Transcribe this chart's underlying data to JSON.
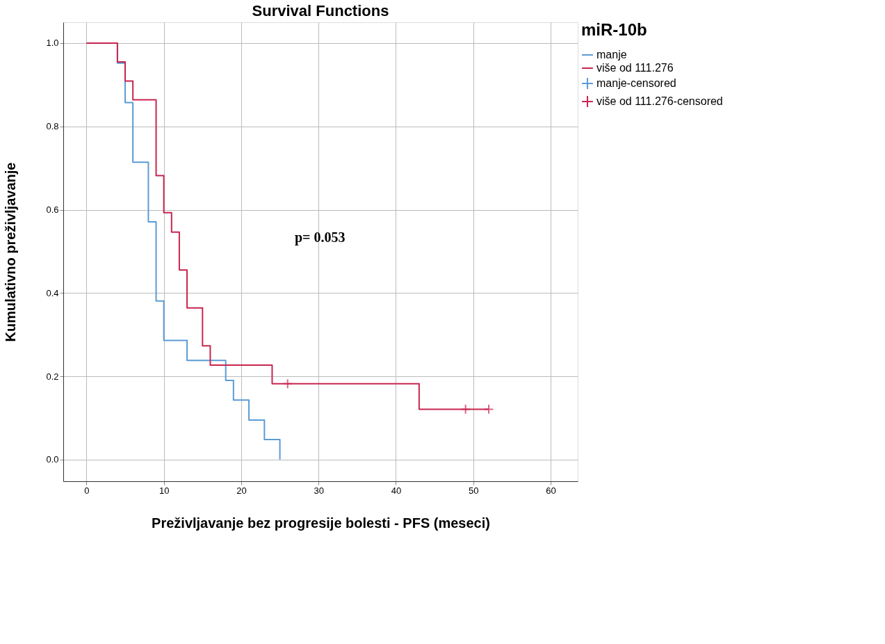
{
  "chart_data": {
    "type": "step",
    "title": "Survival Functions",
    "xlabel": "Preživljavanje bez progresije bolesti - PFS (meseci)",
    "ylabel": "Kumulativno preživljavanje",
    "legend_title": "miR-10b",
    "series": [
      {
        "name": "manje",
        "color": "#5b9bd5",
        "x": [
          0,
          4,
          5,
          6,
          8,
          9,
          10,
          13,
          18,
          19,
          21,
          23,
          25
        ],
        "values": [
          1.0,
          0.952,
          0.857,
          0.714,
          0.571,
          0.381,
          0.286,
          0.238,
          0.19,
          0.143,
          0.095,
          0.048,
          0.0
        ]
      },
      {
        "name": "više od 111.276",
        "color": "#c8254f",
        "x": [
          0,
          4,
          5,
          6,
          9,
          10,
          11,
          12,
          13,
          15,
          16,
          24,
          43,
          52
        ],
        "values": [
          1.0,
          0.955,
          0.909,
          0.864,
          0.682,
          0.593,
          0.546,
          0.455,
          0.364,
          0.273,
          0.227,
          0.182,
          0.121,
          0.121
        ]
      },
      {
        "name": "manje-censored",
        "type": "scatter",
        "marker": "cross",
        "color": "#5b9bd5"
      },
      {
        "name": "više od 111.276-censored",
        "type": "scatter",
        "marker": "cross",
        "color": "#c8254f",
        "x": [
          26,
          49,
          52
        ],
        "values": [
          0.182,
          0.121,
          0.121
        ]
      }
    ],
    "annotations": [
      "p= 0.053"
    ],
    "xlim": [
      -3,
      63.5
    ],
    "xticks": [
      0,
      10,
      20,
      30,
      40,
      50,
      60
    ],
    "ylim": [
      -0.052,
      1.05
    ],
    "yticks": [
      {
        "value": 0,
        "label": "0.0"
      },
      0.2,
      0.4,
      0.6,
      0.8,
      {
        "value": 1,
        "label": "1.0"
      }
    ],
    "grid": true,
    "legend": "top right"
  }
}
